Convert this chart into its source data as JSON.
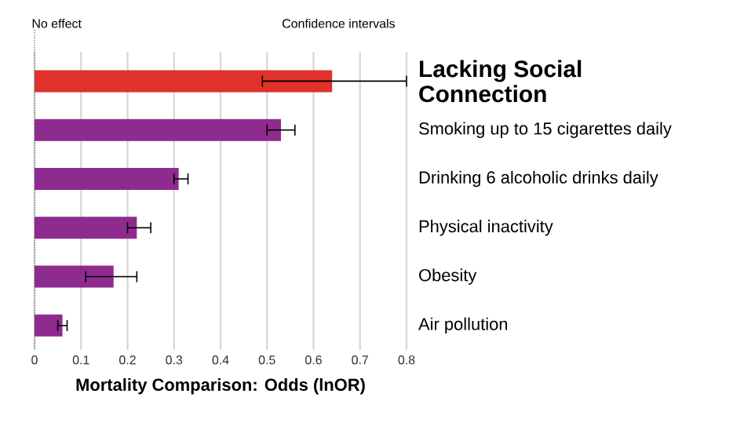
{
  "chart_data": {
    "type": "bar",
    "orientation": "horizontal",
    "xlabel": "Mortality Comparison: Odds (lnOR)",
    "categories": [
      "Lacking Social Connection",
      "Smoking up to 15 cigarettes daily",
      "Drinking 6 alcoholic drinks daily",
      "Physical inactivity",
      "Obesity",
      "Air pollution"
    ],
    "values": [
      0.64,
      0.53,
      0.31,
      0.22,
      0.17,
      0.06
    ],
    "colors": [
      "#e0312b",
      "#8e2b8e",
      "#8e2b8e",
      "#8e2b8e",
      "#8e2b8e",
      "#8e2b8e"
    ],
    "errors": [
      [
        0.49,
        0.8
      ],
      [
        0.5,
        0.56
      ],
      [
        0.3,
        0.33
      ],
      [
        0.2,
        0.25
      ],
      [
        0.11,
        0.22
      ],
      [
        0.05,
        0.07
      ]
    ],
    "xlim": [
      0,
      0.8
    ],
    "xticks": [
      0,
      0.1,
      0.2,
      0.3,
      0.4,
      0.5,
      0.6,
      0.7,
      0.8
    ],
    "grid": "x",
    "ref_lines": [
      {
        "axis": "x",
        "value": 0,
        "label": "No effect",
        "line_style": "dotted"
      }
    ],
    "annotations": [
      "Confidence intervals"
    ]
  }
}
